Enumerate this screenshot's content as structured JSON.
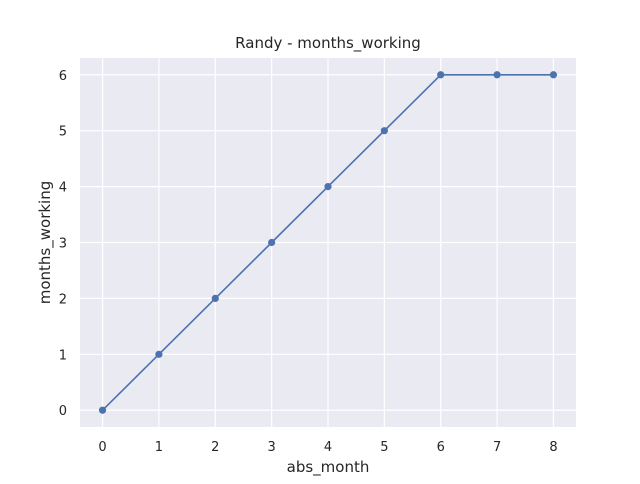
{
  "chart_data": {
    "type": "line",
    "title": "Randy - months_working",
    "xlabel": "abs_month",
    "ylabel": "months_working",
    "x": [
      0,
      1,
      2,
      3,
      4,
      5,
      6,
      7,
      8
    ],
    "series": [
      {
        "values": [
          0,
          1,
          2,
          3,
          4,
          5,
          6,
          6,
          6
        ]
      }
    ],
    "xlim": [
      -0.4,
      8.4
    ],
    "ylim": [
      -0.3,
      6.3
    ],
    "xticks": [
      0,
      1,
      2,
      3,
      4,
      5,
      6,
      7,
      8
    ],
    "yticks": [
      0,
      1,
      2,
      3,
      4,
      5,
      6
    ],
    "grid": true,
    "legend": "none",
    "colors": {
      "background": "#eaeaf2",
      "grid": "#ffffff",
      "line": "#4c72b0",
      "text": "#262626"
    }
  }
}
